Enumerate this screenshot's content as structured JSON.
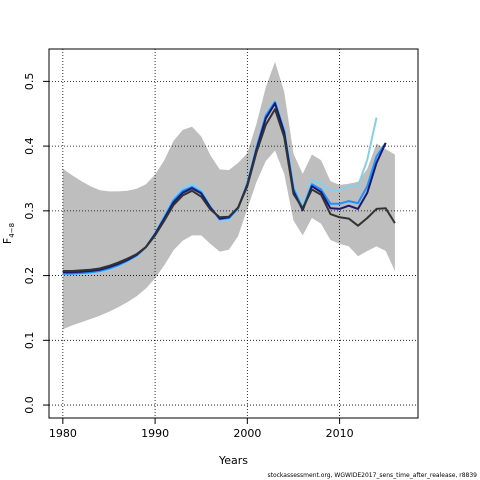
{
  "chart_data": {
    "type": "line",
    "xlabel": "Years",
    "ylabel": "F",
    "ylabel_subscript": "4−8",
    "xlim": [
      1978.5,
      2018.5
    ],
    "ylim": [
      -0.02,
      0.55
    ],
    "xticks": [
      1980,
      1990,
      2000,
      2010
    ],
    "yticks": [
      0.0,
      0.1,
      0.2,
      0.3,
      0.4,
      0.5
    ],
    "ytick_labels": [
      "0.0",
      "0.1",
      "0.2",
      "0.3",
      "0.4",
      "0.5"
    ],
    "grid": true,
    "legend": "none",
    "confidence_band": {
      "color": "#bebebe",
      "x": [
        1980,
        1981,
        1982,
        1983,
        1984,
        1985,
        1986,
        1987,
        1988,
        1989,
        1990,
        1991,
        1992,
        1993,
        1994,
        1995,
        1996,
        1997,
        1998,
        1999,
        2000,
        2001,
        2002,
        2003,
        2004,
        2005,
        2006,
        2007,
        2008,
        2009,
        2010,
        2011,
        2012,
        2013,
        2014,
        2015,
        2016
      ],
      "upper": [
        0.365,
        0.355,
        0.346,
        0.338,
        0.332,
        0.33,
        0.33,
        0.331,
        0.334,
        0.341,
        0.356,
        0.378,
        0.408,
        0.425,
        0.43,
        0.415,
        0.386,
        0.364,
        0.363,
        0.374,
        0.389,
        0.435,
        0.491,
        0.53,
        0.484,
        0.388,
        0.357,
        0.387,
        0.378,
        0.346,
        0.34,
        0.342,
        0.345,
        0.365,
        0.404,
        0.395,
        0.387
      ],
      "lower": [
        0.117,
        0.123,
        0.128,
        0.133,
        0.138,
        0.144,
        0.151,
        0.159,
        0.168,
        0.18,
        0.196,
        0.216,
        0.239,
        0.254,
        0.262,
        0.262,
        0.249,
        0.237,
        0.24,
        0.261,
        0.303,
        0.345,
        0.377,
        0.393,
        0.357,
        0.285,
        0.262,
        0.289,
        0.28,
        0.255,
        0.249,
        0.245,
        0.23,
        0.238,
        0.245,
        0.238,
        0.207
      ]
    },
    "series": [
      {
        "color": "#87ceeb",
        "x": [
          1980,
          1981,
          1982,
          1983,
          1984,
          1985,
          1986,
          1987,
          1988,
          1989,
          1990,
          1991,
          1992,
          1993,
          1994,
          1995,
          1996,
          1997,
          1998,
          1999,
          2000,
          2001,
          2002,
          2003,
          2004,
          2005,
          2006,
          2007,
          2008,
          2009,
          2010,
          2011,
          2012,
          2013,
          2014
        ],
        "values": [
          0.202,
          0.202,
          0.203,
          0.204,
          0.206,
          0.21,
          0.215,
          0.222,
          0.23,
          0.244,
          0.266,
          0.292,
          0.319,
          0.335,
          0.342,
          0.332,
          0.307,
          0.284,
          0.286,
          0.303,
          0.344,
          0.4,
          0.449,
          0.47,
          0.427,
          0.34,
          0.306,
          0.348,
          0.343,
          0.331,
          0.332,
          0.338,
          0.338,
          0.379,
          0.444
        ]
      },
      {
        "color": "#1e90ff",
        "x": [
          1980,
          1981,
          1982,
          1983,
          1984,
          1985,
          1986,
          1987,
          1988,
          1989,
          1990,
          1991,
          1992,
          1993,
          1994,
          1995,
          1996,
          1997,
          1998,
          1999,
          2000,
          2001,
          2002,
          2003,
          2004,
          2005,
          2006,
          2007,
          2008,
          2009,
          2010,
          2011,
          2012,
          2013,
          2014,
          2015
        ],
        "values": [
          0.203,
          0.203,
          0.204,
          0.205,
          0.207,
          0.211,
          0.216,
          0.223,
          0.231,
          0.244,
          0.265,
          0.29,
          0.316,
          0.331,
          0.337,
          0.329,
          0.306,
          0.287,
          0.289,
          0.304,
          0.342,
          0.398,
          0.447,
          0.468,
          0.423,
          0.334,
          0.303,
          0.341,
          0.333,
          0.311,
          0.311,
          0.315,
          0.312,
          0.338,
          0.384,
          0.405
        ]
      },
      {
        "color": "#191970",
        "x": [
          1980,
          1981,
          1982,
          1983,
          1984,
          1985,
          1986,
          1987,
          1988,
          1989,
          1990,
          1991,
          1992,
          1993,
          1994,
          1995,
          1996,
          1997,
          1998,
          1999,
          2000,
          2001,
          2002,
          2003,
          2004,
          2005,
          2006,
          2007,
          2008,
          2009,
          2010,
          2011,
          2012,
          2013,
          2014,
          2015
        ],
        "values": [
          0.205,
          0.205,
          0.206,
          0.207,
          0.209,
          0.213,
          0.218,
          0.224,
          0.232,
          0.244,
          0.264,
          0.288,
          0.313,
          0.328,
          0.335,
          0.327,
          0.305,
          0.288,
          0.29,
          0.305,
          0.34,
          0.395,
          0.443,
          0.466,
          0.421,
          0.33,
          0.301,
          0.338,
          0.329,
          0.304,
          0.303,
          0.308,
          0.303,
          0.328,
          0.374,
          0.405
        ]
      },
      {
        "color": "#333333",
        "x": [
          1980,
          1981,
          1982,
          1983,
          1984,
          1985,
          1986,
          1987,
          1988,
          1989,
          1990,
          1991,
          1992,
          1993,
          1994,
          1995,
          1996,
          1997,
          1998,
          1999,
          2000,
          2001,
          2002,
          2003,
          2004,
          2005,
          2006,
          2007,
          2008,
          2009,
          2010,
          2011,
          2012,
          2013,
          2014,
          2015,
          2016
        ],
        "values": [
          0.207,
          0.207,
          0.208,
          0.209,
          0.211,
          0.215,
          0.22,
          0.226,
          0.233,
          0.244,
          0.262,
          0.285,
          0.309,
          0.324,
          0.331,
          0.322,
          0.302,
          0.29,
          0.291,
          0.305,
          0.338,
          0.391,
          0.433,
          0.457,
          0.414,
          0.326,
          0.304,
          0.333,
          0.325,
          0.295,
          0.29,
          0.288,
          0.277,
          0.289,
          0.303,
          0.304,
          0.281
        ]
      }
    ]
  },
  "footer": "stockassessment.org, WGWIDE2017_sens_time_after_realease, r8839"
}
